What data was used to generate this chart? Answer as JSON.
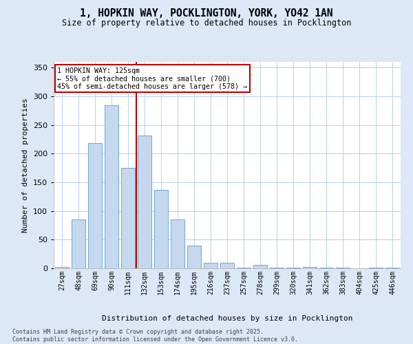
{
  "title_line1": "1, HOPKIN WAY, POCKLINGTON, YORK, YO42 1AN",
  "title_line2": "Size of property relative to detached houses in Pocklington",
  "xlabel": "Distribution of detached houses by size in Pocklington",
  "ylabel": "Number of detached properties",
  "categories": [
    "27sqm",
    "48sqm",
    "69sqm",
    "90sqm",
    "111sqm",
    "132sqm",
    "153sqm",
    "174sqm",
    "195sqm",
    "216sqm",
    "237sqm",
    "257sqm",
    "278sqm",
    "299sqm",
    "320sqm",
    "341sqm",
    "362sqm",
    "383sqm",
    "404sqm",
    "425sqm",
    "446sqm"
  ],
  "values": [
    2,
    85,
    218,
    285,
    175,
    232,
    137,
    85,
    40,
    10,
    10,
    1,
    6,
    1,
    1,
    2,
    1,
    1,
    0,
    1,
    1
  ],
  "bar_color": "#c5d8ed",
  "bar_edge_color": "#5b9bd5",
  "vline_color": "#c00000",
  "annotation_title": "1 HOPKIN WAY: 125sqm",
  "annotation_line2": "← 55% of detached houses are smaller (700)",
  "annotation_line3": "45% of semi-detached houses are larger (578) →",
  "annotation_box_color": "#c00000",
  "annotation_bg": "#ffffff",
  "ylim": [
    0,
    360
  ],
  "yticks": [
    0,
    50,
    100,
    150,
    200,
    250,
    300,
    350
  ],
  "footer_line1": "Contains HM Land Registry data © Crown copyright and database right 2025.",
  "footer_line2": "Contains public sector information licensed under the Open Government Licence v3.0.",
  "bg_color": "#dce8f5",
  "plot_bg_color": "#ffffff",
  "grid_color": "#b8d0e8"
}
